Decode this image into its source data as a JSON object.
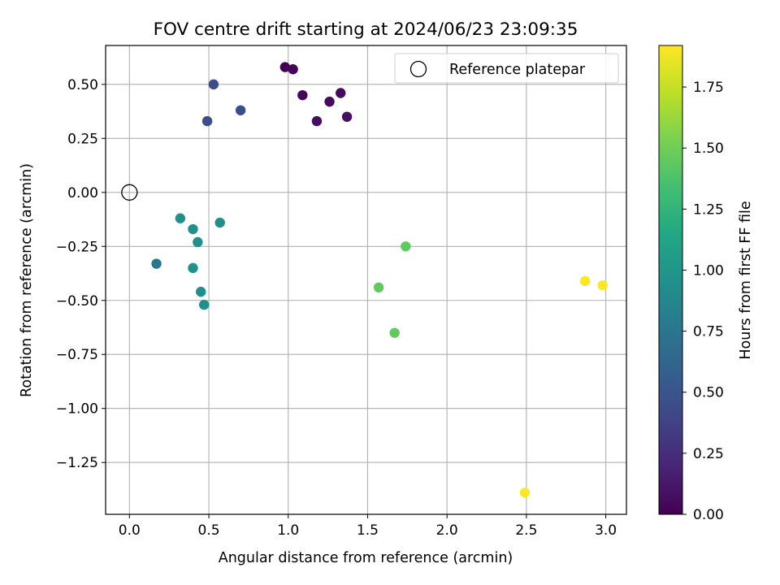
{
  "chart_data": {
    "type": "scatter",
    "title": "FOV centre drift starting at 2024/06/23 23:09:35",
    "xlabel": "Angular distance from reference (arcmin)",
    "ylabel": "Rotation from reference (arcmin)",
    "xlim": [
      -0.15,
      3.13
    ],
    "ylim": [
      -1.49,
      0.68
    ],
    "xticks": [
      0.0,
      0.5,
      1.0,
      1.5,
      2.0,
      2.5,
      3.0
    ],
    "xtick_labels": [
      "0.0",
      "0.5",
      "1.0",
      "1.5",
      "2.0",
      "2.5",
      "3.0"
    ],
    "yticks": [
      0.5,
      0.25,
      0.0,
      -0.25,
      -0.5,
      -0.75,
      -1.0,
      -1.25
    ],
    "ytick_labels": [
      "0.50",
      "0.25",
      "0.00",
      "−0.25",
      "−0.50",
      "−0.75",
      "−1.00",
      "−1.25"
    ],
    "grid": true,
    "legend": {
      "placement": "top-right",
      "entries": [
        {
          "label": "Reference platepar",
          "marker": "open-circle"
        }
      ]
    },
    "colorbar": {
      "label": "Hours from first FF file",
      "colormap": "viridis",
      "range": [
        0.0,
        1.92
      ],
      "ticks": [
        0.0,
        0.25,
        0.5,
        0.75,
        1.0,
        1.25,
        1.5,
        1.75
      ],
      "tick_labels": [
        "0.00",
        "0.25",
        "0.50",
        "0.75",
        "1.00",
        "1.25",
        "1.50",
        "1.75"
      ]
    },
    "reference_point": {
      "x": 0.0,
      "y": 0.0
    },
    "points": [
      {
        "x": 0.98,
        "y": 0.58,
        "hours": 0.0
      },
      {
        "x": 1.03,
        "y": 0.57,
        "hours": 0.02
      },
      {
        "x": 1.09,
        "y": 0.45,
        "hours": 0.04
      },
      {
        "x": 1.33,
        "y": 0.46,
        "hours": 0.05
      },
      {
        "x": 1.26,
        "y": 0.42,
        "hours": 0.06
      },
      {
        "x": 1.18,
        "y": 0.33,
        "hours": 0.07
      },
      {
        "x": 1.37,
        "y": 0.35,
        "hours": 0.08
      },
      {
        "x": 0.53,
        "y": 0.5,
        "hours": 0.45
      },
      {
        "x": 0.7,
        "y": 0.38,
        "hours": 0.45
      },
      {
        "x": 0.49,
        "y": 0.33,
        "hours": 0.45
      },
      {
        "x": 0.32,
        "y": -0.12,
        "hours": 0.95
      },
      {
        "x": 0.57,
        "y": -0.14,
        "hours": 0.95
      },
      {
        "x": 0.4,
        "y": -0.17,
        "hours": 0.95
      },
      {
        "x": 0.43,
        "y": -0.23,
        "hours": 0.95
      },
      {
        "x": 0.17,
        "y": -0.33,
        "hours": 0.75
      },
      {
        "x": 0.4,
        "y": -0.35,
        "hours": 0.95
      },
      {
        "x": 0.45,
        "y": -0.46,
        "hours": 0.95
      },
      {
        "x": 0.47,
        "y": -0.52,
        "hours": 0.95
      },
      {
        "x": 1.74,
        "y": -0.25,
        "hours": 1.45
      },
      {
        "x": 1.57,
        "y": -0.44,
        "hours": 1.45
      },
      {
        "x": 1.67,
        "y": -0.65,
        "hours": 1.45
      },
      {
        "x": 2.87,
        "y": -0.41,
        "hours": 1.92
      },
      {
        "x": 2.98,
        "y": -0.43,
        "hours": 1.92
      },
      {
        "x": 2.49,
        "y": -1.39,
        "hours": 1.92
      }
    ]
  }
}
